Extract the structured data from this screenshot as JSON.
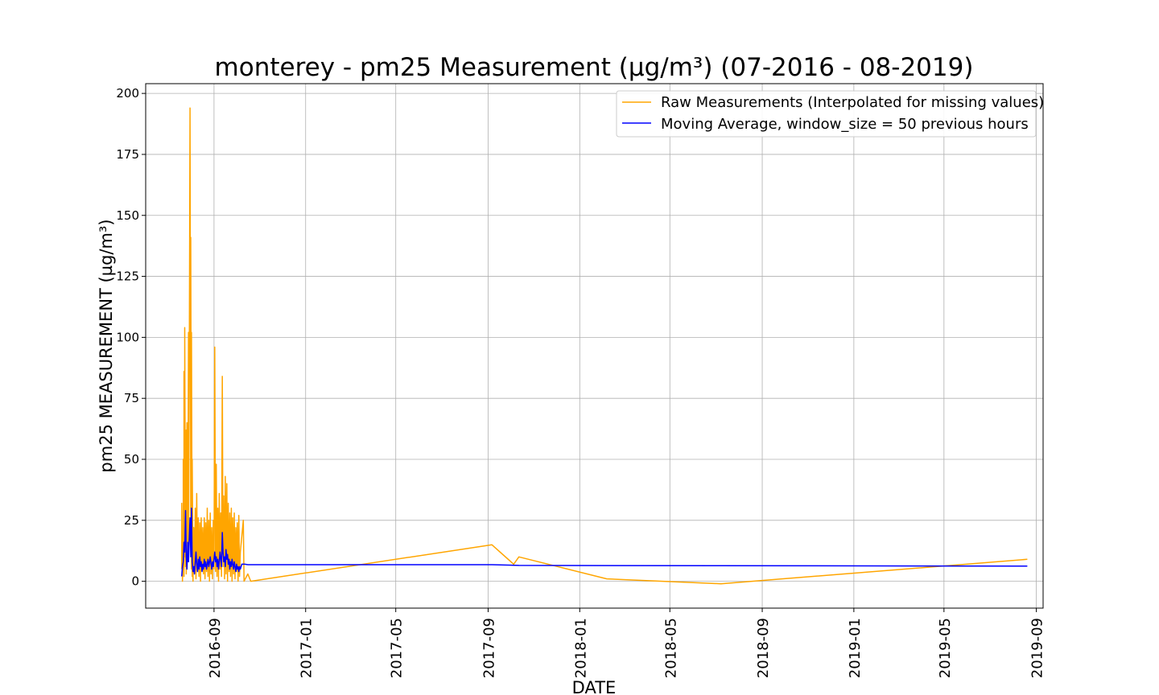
{
  "chart_data": {
    "type": "line",
    "title": "monterey - pm25 Measurement (µg/m³) (07-2016 - 08-2019)",
    "xlabel": "DATE",
    "ylabel": "pm25 MEASUREMENT (µg/m³)",
    "xlim": [
      "2016-06-02",
      "2019-09-10"
    ],
    "ylim": [
      -11,
      204
    ],
    "x_ticks": [
      "2016-09",
      "2017-01",
      "2017-05",
      "2017-09",
      "2018-01",
      "2018-05",
      "2018-09",
      "2019-01",
      "2019-05",
      "2019-09"
    ],
    "y_ticks": [
      0,
      25,
      50,
      75,
      100,
      125,
      150,
      175,
      200
    ],
    "grid": true,
    "legend_position": "upper-right",
    "series": [
      {
        "name": "Raw Measurements (Interpolated for missing values)",
        "color": "#ffa500",
        "points": [
          [
            "2016-07-20",
            5
          ],
          [
            "2016-07-20",
            32
          ],
          [
            "2016-07-21",
            0
          ],
          [
            "2016-07-22",
            18
          ],
          [
            "2016-07-22",
            50
          ],
          [
            "2016-07-23",
            2
          ],
          [
            "2016-07-23",
            86
          ],
          [
            "2016-07-24",
            10
          ],
          [
            "2016-07-24",
            104
          ],
          [
            "2016-07-25",
            6
          ],
          [
            "2016-07-26",
            62
          ],
          [
            "2016-07-26",
            3
          ],
          [
            "2016-07-27",
            65
          ],
          [
            "2016-07-28",
            8
          ],
          [
            "2016-07-29",
            102
          ],
          [
            "2016-07-29",
            12
          ],
          [
            "2016-07-30",
            80
          ],
          [
            "2016-07-31",
            194
          ],
          [
            "2016-08-01",
            20
          ],
          [
            "2016-08-01",
            141
          ],
          [
            "2016-08-02",
            5
          ],
          [
            "2016-08-02",
            102
          ],
          [
            "2016-08-03",
            2
          ],
          [
            "2016-08-03",
            50
          ],
          [
            "2016-08-04",
            0
          ],
          [
            "2016-08-05",
            22
          ],
          [
            "2016-08-06",
            3
          ],
          [
            "2016-08-07",
            30
          ],
          [
            "2016-08-08",
            1
          ],
          [
            "2016-08-09",
            36
          ],
          [
            "2016-08-10",
            4
          ],
          [
            "2016-08-11",
            26
          ],
          [
            "2016-08-12",
            2
          ],
          [
            "2016-08-13",
            24
          ],
          [
            "2016-08-14",
            0
          ],
          [
            "2016-08-15",
            26
          ],
          [
            "2016-08-16",
            5
          ],
          [
            "2016-08-17",
            22
          ],
          [
            "2016-08-18",
            3
          ],
          [
            "2016-08-19",
            26
          ],
          [
            "2016-08-20",
            1
          ],
          [
            "2016-08-21",
            24
          ],
          [
            "2016-08-22",
            4
          ],
          [
            "2016-08-23",
            30
          ],
          [
            "2016-08-24",
            2
          ],
          [
            "2016-08-25",
            25
          ],
          [
            "2016-08-26",
            0
          ],
          [
            "2016-08-27",
            28
          ],
          [
            "2016-08-28",
            3
          ],
          [
            "2016-08-29",
            22
          ],
          [
            "2016-08-30",
            1
          ],
          [
            "2016-08-31",
            25
          ],
          [
            "2016-09-01",
            5
          ],
          [
            "2016-09-02",
            96
          ],
          [
            "2016-09-03",
            4
          ],
          [
            "2016-09-04",
            48
          ],
          [
            "2016-09-05",
            2
          ],
          [
            "2016-09-06",
            30
          ],
          [
            "2016-09-07",
            0
          ],
          [
            "2016-09-08",
            36
          ],
          [
            "2016-09-09",
            5
          ],
          [
            "2016-09-10",
            28
          ],
          [
            "2016-09-11",
            2
          ],
          [
            "2016-09-12",
            84
          ],
          [
            "2016-09-13",
            6
          ],
          [
            "2016-09-14",
            35
          ],
          [
            "2016-09-15",
            1
          ],
          [
            "2016-09-16",
            43
          ],
          [
            "2016-09-17",
            3
          ],
          [
            "2016-09-18",
            40
          ],
          [
            "2016-09-19",
            0
          ],
          [
            "2016-09-20",
            32
          ],
          [
            "2016-09-21",
            4
          ],
          [
            "2016-09-22",
            28
          ],
          [
            "2016-09-23",
            2
          ],
          [
            "2016-09-24",
            30
          ],
          [
            "2016-09-25",
            0
          ],
          [
            "2016-09-26",
            26
          ],
          [
            "2016-09-27",
            3
          ],
          [
            "2016-09-28",
            28
          ],
          [
            "2016-09-29",
            1
          ],
          [
            "2016-09-30",
            22
          ],
          [
            "2016-10-01",
            4
          ],
          [
            "2016-10-02",
            24
          ],
          [
            "2016-10-03",
            0
          ],
          [
            "2016-10-04",
            27
          ],
          [
            "2016-10-05",
            2
          ],
          [
            "2016-10-06",
            12
          ],
          [
            "2016-10-10",
            25
          ],
          [
            "2016-10-11",
            0
          ],
          [
            "2016-10-16",
            3
          ],
          [
            "2016-10-20",
            0
          ],
          [
            "2017-09-06",
            15
          ],
          [
            "2017-10-05",
            7
          ],
          [
            "2017-10-12",
            10
          ],
          [
            "2018-02-06",
            1
          ],
          [
            "2018-07-08",
            -1
          ],
          [
            "2019-08-20",
            9
          ]
        ]
      },
      {
        "name": "Moving Average, window_size = 50 previous hours",
        "color": "#0000ff",
        "points": [
          [
            "2016-07-20",
            2
          ],
          [
            "2016-07-21",
            6
          ],
          [
            "2016-07-22",
            8
          ],
          [
            "2016-07-23",
            16
          ],
          [
            "2016-07-24",
            12
          ],
          [
            "2016-07-25",
            29
          ],
          [
            "2016-07-26",
            10
          ],
          [
            "2016-07-27",
            5
          ],
          [
            "2016-07-28",
            16
          ],
          [
            "2016-07-29",
            8
          ],
          [
            "2016-07-30",
            17
          ],
          [
            "2016-07-31",
            26
          ],
          [
            "2016-08-01",
            10
          ],
          [
            "2016-08-02",
            30
          ],
          [
            "2016-08-03",
            8
          ],
          [
            "2016-08-04",
            4
          ],
          [
            "2016-08-05",
            6
          ],
          [
            "2016-08-06",
            3
          ],
          [
            "2016-08-07",
            8
          ],
          [
            "2016-08-08",
            12
          ],
          [
            "2016-08-09",
            7
          ],
          [
            "2016-08-10",
            4
          ],
          [
            "2016-08-11",
            9
          ],
          [
            "2016-08-12",
            5
          ],
          [
            "2016-08-13",
            10
          ],
          [
            "2016-08-14",
            6
          ],
          [
            "2016-08-15",
            8
          ],
          [
            "2016-08-16",
            4
          ],
          [
            "2016-08-17",
            7
          ],
          [
            "2016-08-18",
            5
          ],
          [
            "2016-08-19",
            9
          ],
          [
            "2016-08-20",
            6
          ],
          [
            "2016-08-21",
            8
          ],
          [
            "2016-08-22",
            5
          ],
          [
            "2016-08-23",
            7
          ],
          [
            "2016-08-24",
            9
          ],
          [
            "2016-08-25",
            6
          ],
          [
            "2016-08-26",
            8
          ],
          [
            "2016-08-27",
            10
          ],
          [
            "2016-08-28",
            7
          ],
          [
            "2016-08-29",
            5
          ],
          [
            "2016-08-30",
            8
          ],
          [
            "2016-08-31",
            6
          ],
          [
            "2016-09-01",
            9
          ],
          [
            "2016-09-02",
            12
          ],
          [
            "2016-09-03",
            8
          ],
          [
            "2016-09-04",
            10
          ],
          [
            "2016-09-05",
            6
          ],
          [
            "2016-09-06",
            9
          ],
          [
            "2016-09-07",
            5
          ],
          [
            "2016-09-08",
            8
          ],
          [
            "2016-09-09",
            12
          ],
          [
            "2016-09-10",
            9
          ],
          [
            "2016-09-11",
            6
          ],
          [
            "2016-09-12",
            20
          ],
          [
            "2016-09-13",
            12
          ],
          [
            "2016-09-14",
            8
          ],
          [
            "2016-09-15",
            10
          ],
          [
            "2016-09-16",
            6
          ],
          [
            "2016-09-17",
            13
          ],
          [
            "2016-09-18",
            9
          ],
          [
            "2016-09-19",
            11
          ],
          [
            "2016-09-20",
            7
          ],
          [
            "2016-09-21",
            9
          ],
          [
            "2016-09-22",
            5
          ],
          [
            "2016-09-23",
            8
          ],
          [
            "2016-09-24",
            6
          ],
          [
            "2016-09-25",
            9
          ],
          [
            "2016-09-26",
            7
          ],
          [
            "2016-09-27",
            5
          ],
          [
            "2016-09-28",
            8
          ],
          [
            "2016-09-29",
            6
          ],
          [
            "2016-09-30",
            4
          ],
          [
            "2016-10-01",
            7
          ],
          [
            "2016-10-02",
            5
          ],
          [
            "2016-10-03",
            6
          ],
          [
            "2016-10-04",
            4
          ],
          [
            "2016-10-05",
            6
          ],
          [
            "2016-10-06",
            5
          ],
          [
            "2016-10-08",
            7
          ],
          [
            "2016-10-12",
            7
          ],
          [
            "2016-10-16",
            6.8
          ],
          [
            "2017-09-06",
            6.8
          ],
          [
            "2017-10-12",
            6.5
          ],
          [
            "2019-08-20",
            6.2
          ]
        ]
      }
    ]
  }
}
